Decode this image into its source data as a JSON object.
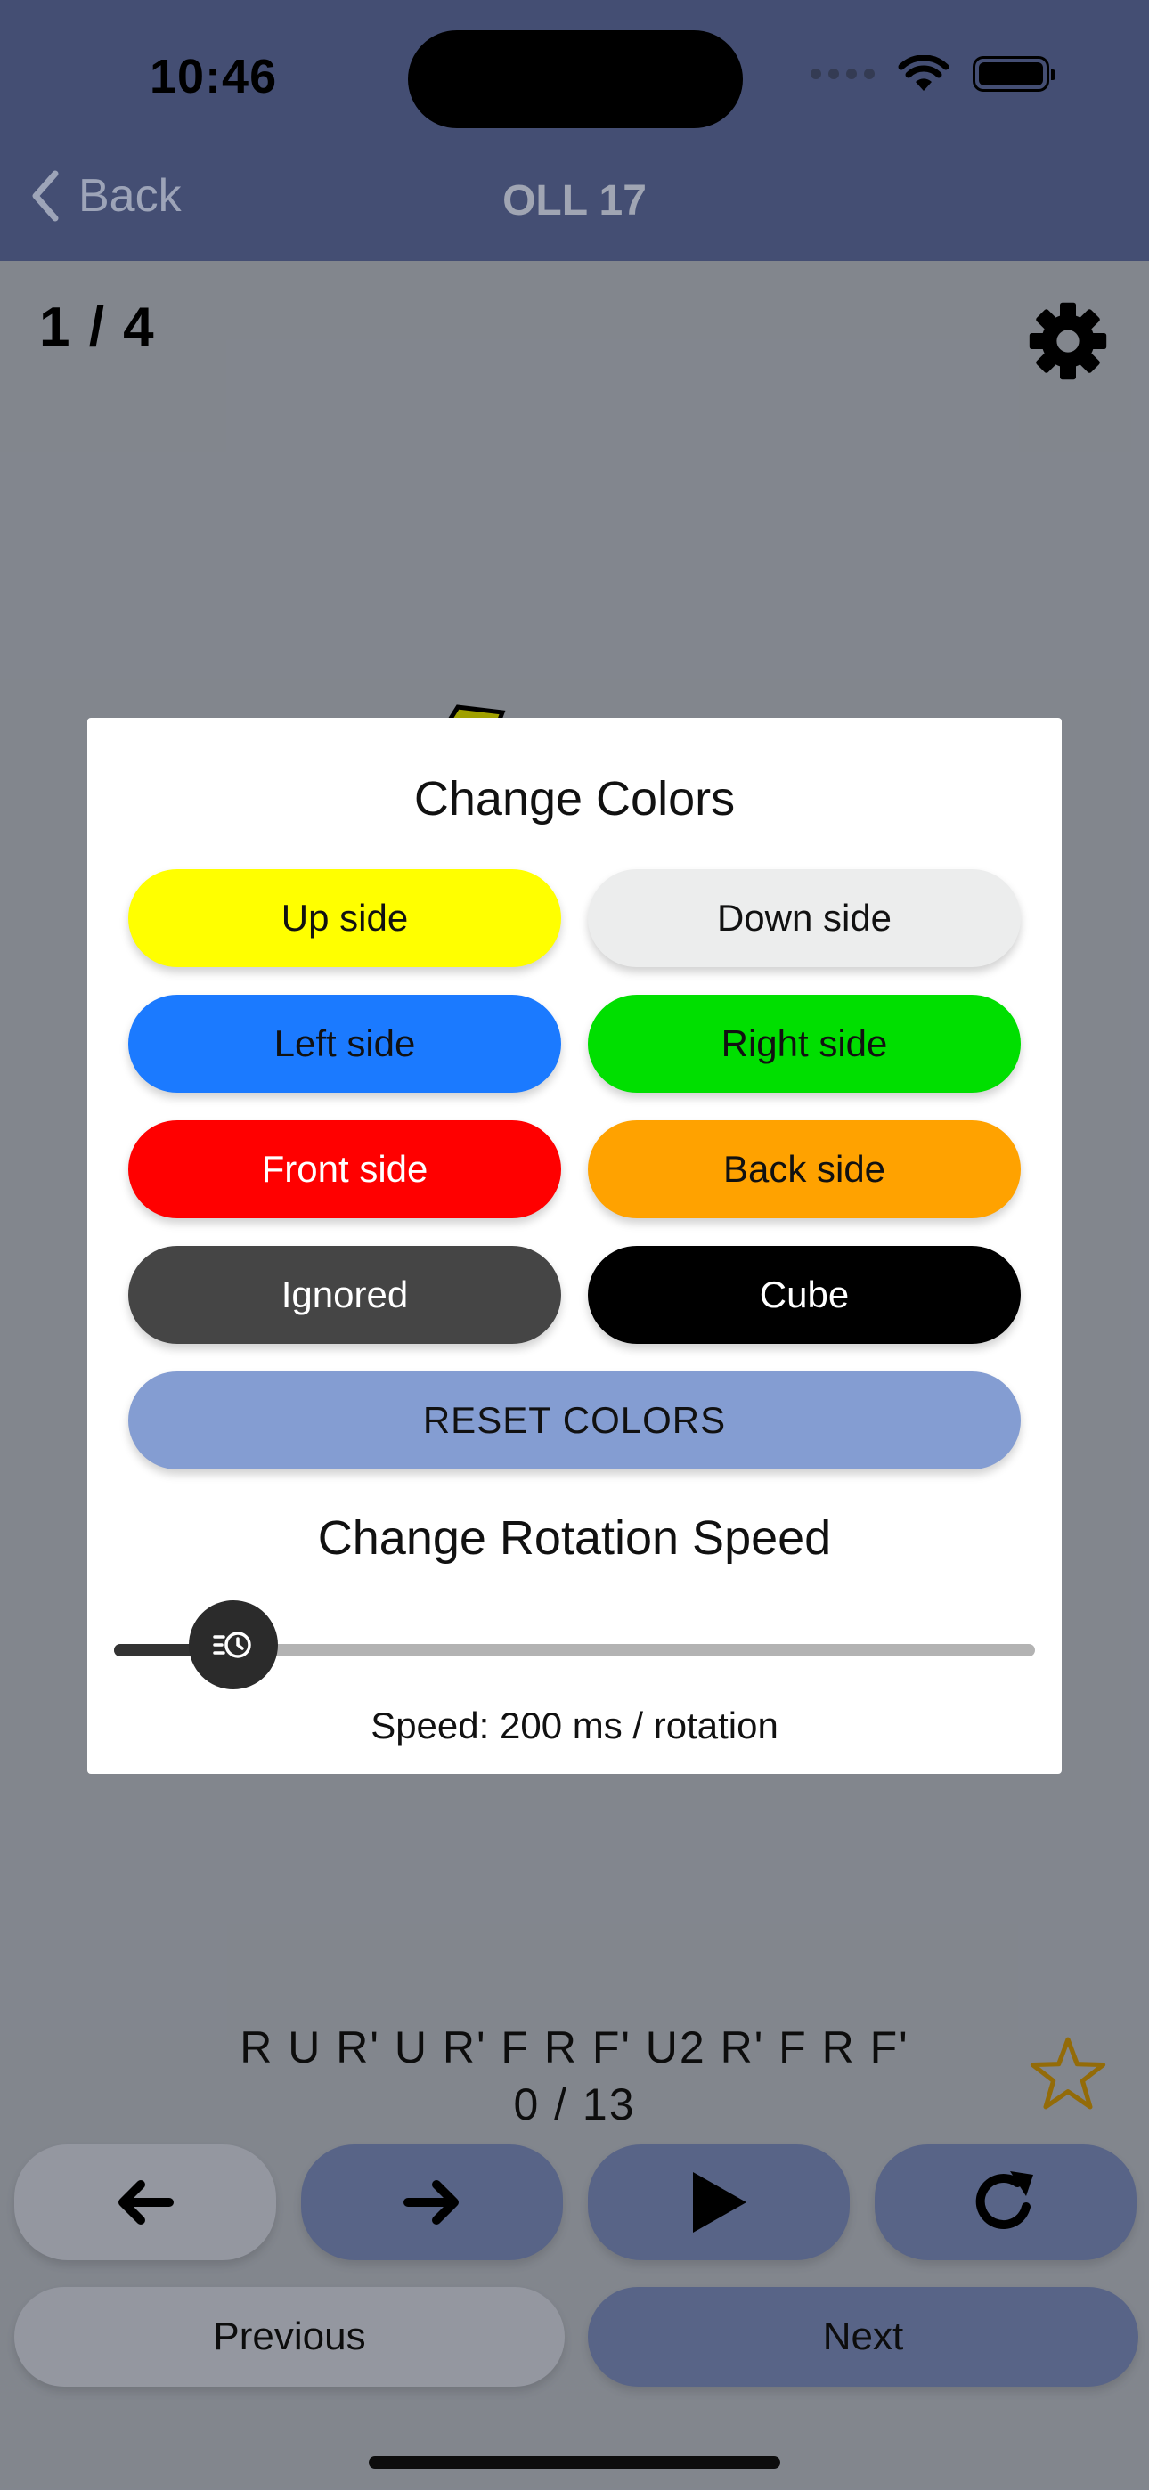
{
  "status_bar": {
    "time": "10:46"
  },
  "nav": {
    "back_label": "Back",
    "title": "OLL 17"
  },
  "page": {
    "counter": "1 / 4",
    "algorithm": "R U R' U R' F R F' U2 R' F R F'",
    "progress": "0 / 13",
    "controls": [
      {
        "name": "step-back-button",
        "icon": "arrow-left-icon"
      },
      {
        "name": "step-forward-button",
        "icon": "arrow-right-icon"
      },
      {
        "name": "play-button",
        "icon": "play-icon"
      },
      {
        "name": "reset-cube-button",
        "icon": "redo-icon"
      }
    ],
    "previous_label": "Previous",
    "next_label": "Next"
  },
  "modal": {
    "colors_title": "Change Colors",
    "color_buttons": [
      {
        "label": "Up side",
        "bg": "#ffff00",
        "fg": "#111111"
      },
      {
        "label": "Down side",
        "bg": "#eceded",
        "fg": "#111111"
      },
      {
        "label": "Left side",
        "bg": "#1b7aff",
        "fg": "#111111"
      },
      {
        "label": "Right side",
        "bg": "#00df00",
        "fg": "#111111"
      },
      {
        "label": "Front side",
        "bg": "#ff0000",
        "fg": "#ffffff"
      },
      {
        "label": "Back side",
        "bg": "#ffa200",
        "fg": "#111111"
      },
      {
        "label": "Ignored",
        "bg": "#454545",
        "fg": "#ffffff"
      },
      {
        "label": "Cube",
        "bg": "#000000",
        "fg": "#ffffff"
      }
    ],
    "reset_label": "RESET COLORS",
    "speed_title": "Change Rotation Speed",
    "speed_label": "Speed: 200 ms / rotation",
    "speed_slider_fraction": 0.09
  },
  "colors": {
    "header": "#556290",
    "star": "#b8860b",
    "reset_button": "#849dd2"
  }
}
